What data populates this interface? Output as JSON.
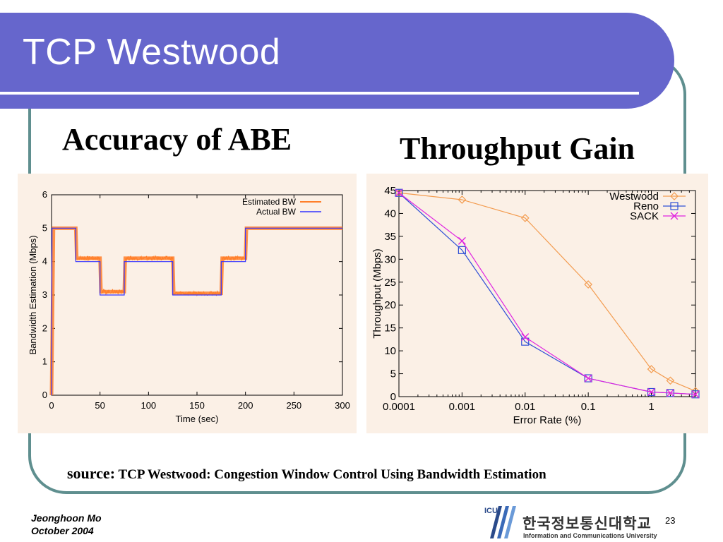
{
  "slide": {
    "title": "TCP Westwood",
    "left_heading": "Accuracy of ABE",
    "right_heading": "Throughput Gain",
    "source_label": "source:",
    "source_text": "TCP Westwood: Congestion Window Control Using Bandwidth Estimation",
    "author": "Jeonghoon Mo",
    "date": "October 2004",
    "page_number": "23",
    "university_name_ko": "한국정보통신대학교",
    "university_name_en": "Information and Communications University",
    "university_logo_text": "ICU",
    "colors": {
      "header": "#6666cc",
      "frame": "#5f8f8f",
      "panel_bg": "#fbf0e6",
      "estimated": "#ff7f2a",
      "actual": "#3333ff",
      "westwood": "#f39c50",
      "reno": "#2f4fd6",
      "sack": "#e024e0"
    }
  },
  "chart_data": [
    {
      "type": "line",
      "xlabel": "Time (sec)",
      "ylabel": "Bandwidth Estimation (Mbps)",
      "xlim": [
        0,
        300
      ],
      "ylim": [
        0,
        6
      ],
      "x_ticks": [
        0,
        50,
        100,
        150,
        200,
        250,
        300
      ],
      "y_ticks": [
        0,
        1,
        2,
        3,
        4,
        5,
        6
      ],
      "grid": false,
      "legend_position": "top-right",
      "series": [
        {
          "name": "Estimated BW",
          "color": "#ff7f2a",
          "x": [
            0,
            2,
            25,
            26,
            50,
            51,
            75,
            76,
            125,
            126,
            175,
            176,
            200,
            201,
            300
          ],
          "y": [
            0,
            5,
            5,
            4.1,
            4.1,
            3.1,
            3.1,
            4.1,
            4.1,
            3.05,
            3.05,
            4.1,
            4.1,
            5,
            5
          ]
        },
        {
          "name": "Actual BW",
          "color": "#3333ff",
          "x": [
            0,
            0.5,
            25,
            25,
            50,
            50,
            75,
            75,
            125,
            125,
            175,
            175,
            200,
            200,
            300
          ],
          "y": [
            0,
            5,
            5,
            4,
            4,
            3,
            3,
            4,
            4,
            3,
            3,
            4,
            4,
            5,
            5
          ]
        }
      ]
    },
    {
      "type": "line",
      "xlabel": "Error Rate (%)",
      "ylabel": "Throughput (Mbps)",
      "x_scale": "log",
      "xlim": [
        0.0001,
        5
      ],
      "ylim": [
        0,
        45
      ],
      "x_ticks": [
        0.0001,
        0.001,
        0.01,
        0.1,
        1
      ],
      "x_tick_labels": [
        "0.0001",
        "0.001",
        "0.01",
        "0.1",
        "1"
      ],
      "y_ticks": [
        0,
        5,
        10,
        15,
        20,
        25,
        30,
        35,
        40,
        45
      ],
      "grid": false,
      "legend_position": "top-right",
      "series": [
        {
          "name": "Westwood",
          "color": "#f39c50",
          "marker": "diamond",
          "x": [
            0.0001,
            0.001,
            0.01,
            0.1,
            1,
            2,
            5
          ],
          "y": [
            44.5,
            43,
            39,
            24.5,
            6,
            3.5,
            1.2
          ]
        },
        {
          "name": "Reno",
          "color": "#2f4fd6",
          "marker": "square",
          "x": [
            0.0001,
            0.001,
            0.01,
            0.1,
            1,
            2,
            5
          ],
          "y": [
            44.5,
            32,
            12,
            4,
            1,
            0.8,
            0.5
          ]
        },
        {
          "name": "SACK",
          "color": "#e024e0",
          "marker": "x",
          "x": [
            0.0001,
            0.001,
            0.01,
            0.1,
            1,
            2,
            5
          ],
          "y": [
            44.5,
            34,
            13,
            4,
            1,
            0.8,
            0.5
          ]
        }
      ]
    }
  ]
}
